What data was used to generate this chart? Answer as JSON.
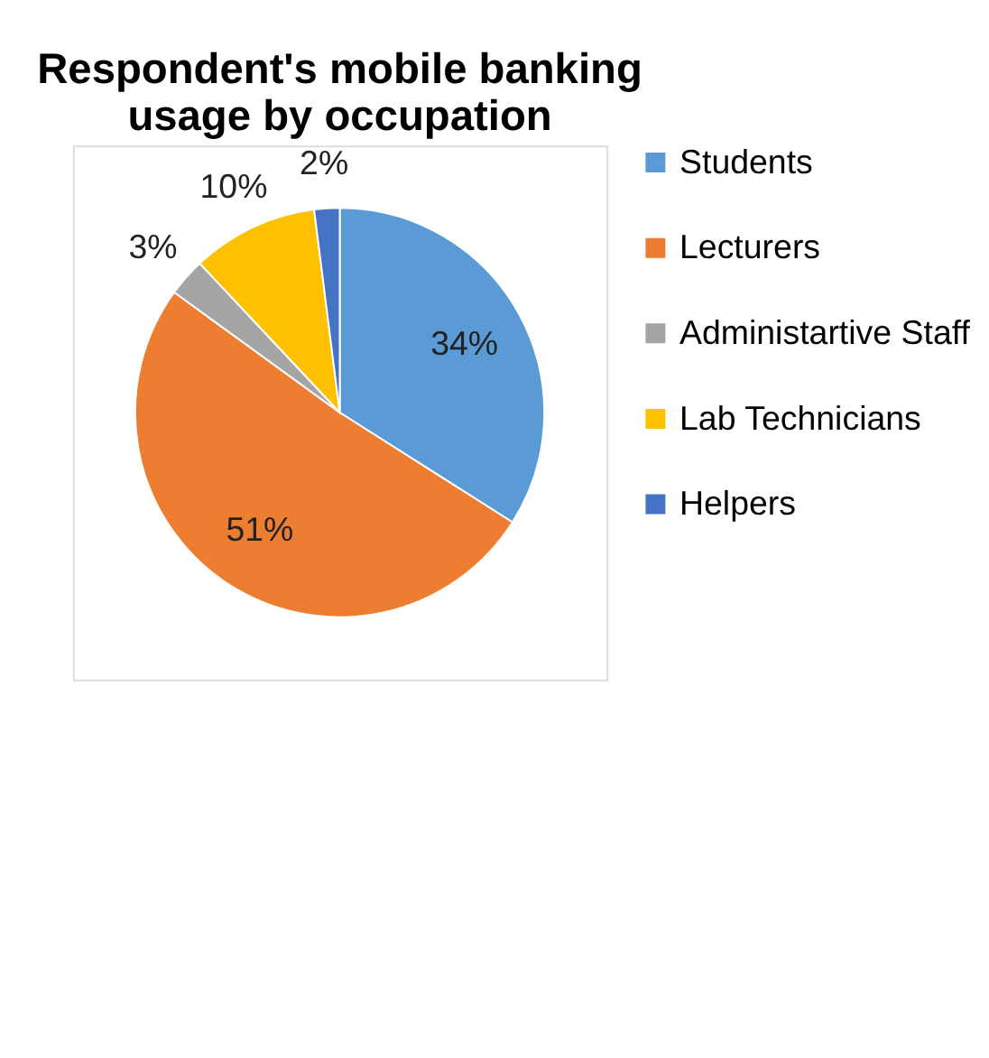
{
  "chart_data": {
    "type": "pie",
    "title": "Respondent's mobile banking usage by occupation",
    "categories": [
      "Students",
      "Lecturers",
      "Administartive Staff",
      "Lab Technicians",
      "Helpers"
    ],
    "values": [
      34,
      51,
      3,
      10,
      2
    ],
    "colors": [
      "#5b9bd5",
      "#ed7d31",
      "#a5a5a5",
      "#ffc000",
      "#4472c4"
    ],
    "value_labels": [
      "34%",
      "51%",
      "3%",
      "10%",
      "2%"
    ],
    "legend": "right"
  }
}
